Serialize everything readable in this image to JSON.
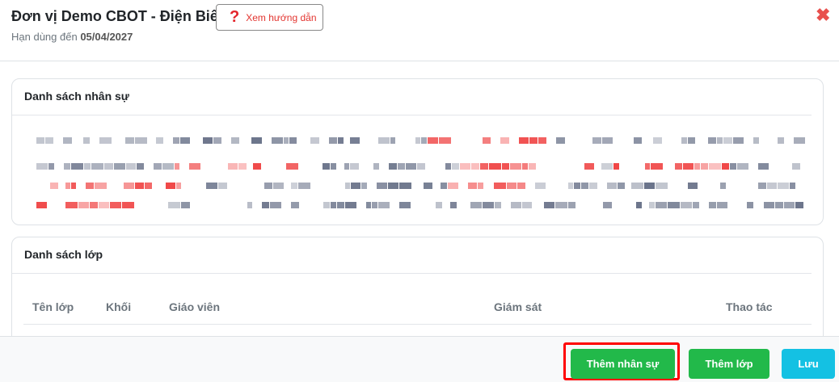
{
  "header": {
    "title": "Đơn vị Demo CBOT - Điện Biên",
    "guide_label": "Xem hướng dẫn",
    "guide_icon": "question-icon",
    "expiry_label": "Hạn dùng đến",
    "expiry_date": "05/04/2027",
    "close_icon": "close-icon"
  },
  "staff": {
    "title": "Danh sách nhân sự"
  },
  "classes": {
    "title": "Danh sách lớp",
    "columns": [
      "Tên lớp",
      "Khối",
      "Giáo viên",
      "Giám sát",
      "Thao tác"
    ]
  },
  "footer": {
    "add_staff": "Thêm nhân sự",
    "add_class": "Thêm lớp",
    "save": "Lưu"
  },
  "colors": {
    "green": "#22b94a",
    "cyan": "#14c1e3",
    "red": "#e3242b"
  }
}
